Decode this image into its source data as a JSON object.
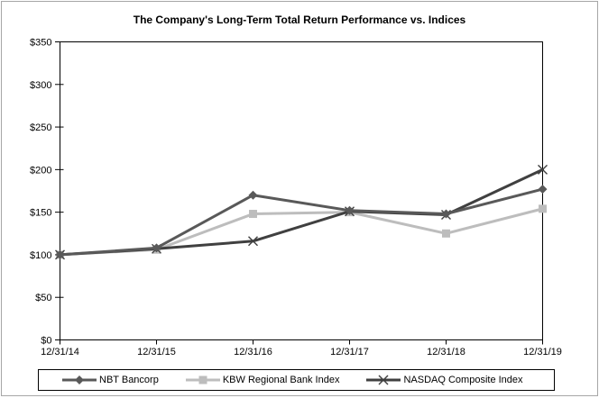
{
  "frame": {
    "border_color": "#a6a6a6",
    "background": "#ffffff"
  },
  "chart_data": {
    "type": "line",
    "title": "The Company's Long-Term Total Return Performance vs. Indices",
    "categories": [
      "12/31/14",
      "12/31/15",
      "12/31/16",
      "12/31/17",
      "12/31/18",
      "12/31/19"
    ],
    "series": [
      {
        "name": "NBT Bancorp",
        "marker": "diamond",
        "color": "#595959",
        "values": [
          100,
          108,
          170,
          152,
          148,
          177
        ]
      },
      {
        "name": "KBW Regional Bank Index",
        "marker": "square",
        "color": "#bdbdbd",
        "values": [
          100,
          106,
          148,
          150,
          125,
          154
        ]
      },
      {
        "name": "NASDAQ Composite Index",
        "marker": "x",
        "color": "#404040",
        "values": [
          100,
          107,
          116,
          151,
          147,
          200
        ]
      }
    ],
    "ylim": [
      0,
      350
    ],
    "ytick_step": 50,
    "ytick_prefix": "$",
    "xlabel": "",
    "ylabel": "",
    "grid": false,
    "legend_position": "bottom",
    "axis_color": "#000000",
    "draw_order": [
      1,
      2,
      0
    ]
  }
}
